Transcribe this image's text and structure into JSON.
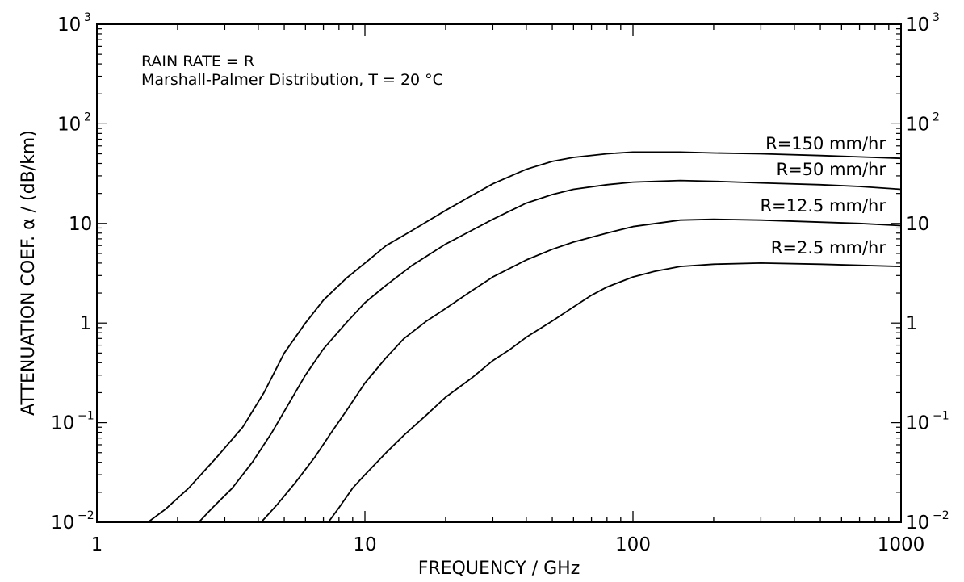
{
  "chart_data": {
    "type": "line",
    "title": "",
    "xlabel": "FREQUENCY / GHz",
    "ylabel": "ATTENUATION COEF. α / (dB/km)",
    "x_scale": "log",
    "y_scale": "log",
    "xlim": [
      1,
      1000
    ],
    "ylim": [
      0.01,
      1000
    ],
    "grid": false,
    "x_ticks": [
      {
        "value": 1,
        "label": "1"
      },
      {
        "value": 10,
        "label": "10"
      },
      {
        "value": 100,
        "label": "100"
      },
      {
        "value": 1000,
        "label": "1000"
      }
    ],
    "y_ticks": [
      {
        "value": 0.01,
        "base": "10",
        "exp": "−2"
      },
      {
        "value": 0.1,
        "base": "10",
        "exp": "−1"
      },
      {
        "value": 1,
        "base": "1",
        "exp": ""
      },
      {
        "value": 10,
        "base": "10",
        "exp": ""
      },
      {
        "value": 100,
        "base": "10",
        "exp": "2"
      },
      {
        "value": 1000,
        "base": "10",
        "exp": "3"
      }
    ],
    "annotations": [
      "RAIN RATE = R",
      "Marshall-Palmer Distribution, T = 20 °C"
    ],
    "series": [
      {
        "name": "R=150 mm/hr",
        "x": [
          1.55,
          1.8,
          2.2,
          2.8,
          3.5,
          4.2,
          5,
          6,
          7,
          8.5,
          10,
          12,
          15,
          20,
          25,
          30,
          40,
          50,
          60,
          80,
          100,
          150,
          200,
          300,
          500,
          700,
          1000
        ],
        "y": [
          0.01,
          0.0135,
          0.022,
          0.045,
          0.09,
          0.2,
          0.5,
          1.0,
          1.7,
          2.8,
          4.0,
          6.0,
          8.5,
          13.5,
          19,
          25,
          35,
          42,
          46,
          50,
          52,
          52,
          51,
          50,
          48,
          46.5,
          45
        ]
      },
      {
        "name": "R=50 mm/hr",
        "x": [
          2.4,
          2.7,
          3.2,
          3.8,
          4.5,
          5.3,
          6,
          7,
          8.5,
          10,
          12,
          15,
          20,
          25,
          30,
          40,
          50,
          60,
          80,
          100,
          150,
          200,
          300,
          500,
          700,
          1000
        ],
        "y": [
          0.01,
          0.014,
          0.022,
          0.04,
          0.08,
          0.17,
          0.3,
          0.55,
          1.0,
          1.6,
          2.4,
          3.8,
          6.2,
          8.5,
          11,
          16,
          19.5,
          22,
          24.5,
          26,
          27,
          26.5,
          25.5,
          24.5,
          23.5,
          22
        ]
      },
      {
        "name": "R=12.5 mm/hr",
        "x": [
          4.1,
          4.7,
          5.5,
          6.5,
          7.5,
          8.5,
          10,
          12,
          14,
          17,
          20,
          25,
          30,
          40,
          50,
          60,
          80,
          100,
          150,
          200,
          300,
          500,
          700,
          1000
        ],
        "y": [
          0.01,
          0.015,
          0.025,
          0.045,
          0.08,
          0.13,
          0.25,
          0.45,
          0.7,
          1.05,
          1.4,
          2.1,
          2.9,
          4.3,
          5.5,
          6.5,
          8.0,
          9.3,
          10.8,
          11.0,
          10.8,
          10.3,
          10.0,
          9.5
        ]
      },
      {
        "name": "R=2.5 mm/hr",
        "x": [
          7.3,
          8,
          9,
          10,
          12,
          14,
          17,
          20,
          25,
          30,
          35,
          40,
          50,
          60,
          70,
          80,
          100,
          120,
          150,
          200,
          300,
          500,
          700,
          1000
        ],
        "y": [
          0.01,
          0.014,
          0.022,
          0.03,
          0.05,
          0.075,
          0.12,
          0.18,
          0.28,
          0.42,
          0.55,
          0.72,
          1.05,
          1.45,
          1.9,
          2.3,
          2.9,
          3.3,
          3.7,
          3.9,
          4.0,
          3.9,
          3.8,
          3.7
        ]
      }
    ]
  }
}
